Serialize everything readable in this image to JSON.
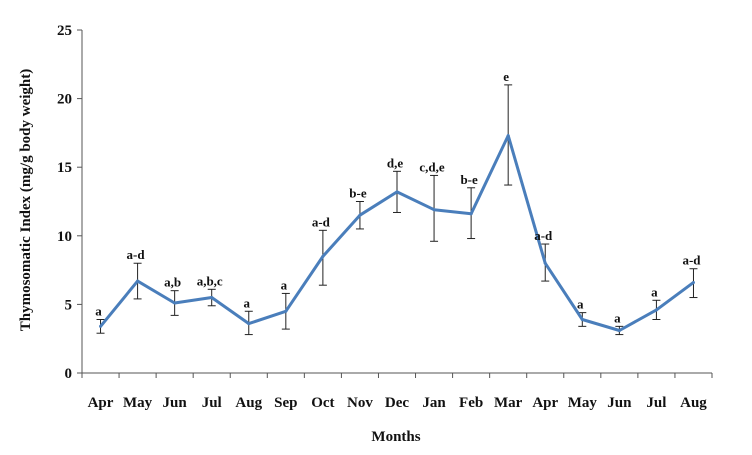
{
  "chart_data": {
    "type": "line",
    "xlabel": "Months",
    "ylabel": "Thymosomatic Index (mg/g body weight)",
    "ylim": [
      0,
      25
    ],
    "yticks": [
      0,
      5,
      10,
      15,
      20,
      25
    ],
    "grid": false,
    "legend": "none",
    "line_color": "#4a7ebb",
    "categories": [
      "Apr",
      "May",
      "Jun",
      "Jul",
      "Aug",
      "Sep",
      "Oct",
      "Nov",
      "Dec",
      "Jan",
      "Feb",
      "Mar",
      "Apr",
      "May",
      "Jun",
      "Jul",
      "Aug"
    ],
    "series": [
      {
        "values": [
          3.4,
          6.7,
          5.1,
          5.5,
          3.6,
          4.5,
          8.5,
          11.5,
          13.2,
          11.9,
          11.6,
          17.3,
          8.0,
          3.9,
          3.1,
          4.6,
          6.6
        ],
        "error_low": [
          2.9,
          5.4,
          4.2,
          4.9,
          2.8,
          3.2,
          6.4,
          10.5,
          11.7,
          9.6,
          9.8,
          13.7,
          6.7,
          3.4,
          2.8,
          3.9,
          5.5
        ],
        "error_high": [
          3.9,
          8.0,
          6.0,
          6.1,
          4.5,
          5.8,
          10.4,
          12.5,
          14.7,
          14.4,
          13.5,
          21.0,
          9.4,
          4.4,
          3.4,
          5.3,
          7.6
        ],
        "annotations": [
          "a",
          "a-d",
          "a,b",
          "a,b,c",
          "a",
          "a",
          "a-d",
          "b-e",
          "d,e",
          "c,d,e",
          "b-e",
          "e",
          "a-d",
          "a",
          "a",
          "a",
          "a-d"
        ]
      }
    ]
  }
}
